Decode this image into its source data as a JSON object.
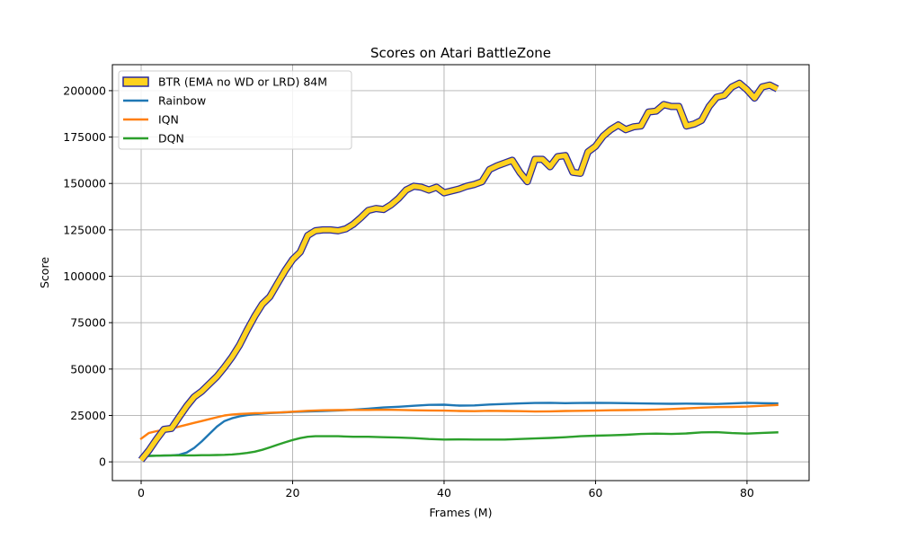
{
  "chart_data": {
    "type": "line",
    "title": "Scores on Atari BattleZone",
    "xlabel": "Frames (M)",
    "ylabel": "Score",
    "xlim": [
      -3.8,
      88.2
    ],
    "ylim": [
      -10100,
      214000
    ],
    "xticks": [
      0,
      20,
      40,
      60,
      80
    ],
    "yticks": [
      0,
      25000,
      50000,
      75000,
      100000,
      125000,
      150000,
      175000,
      200000
    ],
    "grid": true,
    "legend_position": "upper-left",
    "series": [
      {
        "name": "BTR (EMA no WD or LRD) 84M",
        "color": "#ffd21f",
        "edge_color": "#2a2a9c",
        "style": "outlined",
        "x": [
          0,
          1,
          2,
          3,
          4,
          5,
          6,
          7,
          8,
          9,
          10,
          11,
          12,
          13,
          14,
          15,
          16,
          17,
          18,
          19,
          20,
          21,
          22,
          23,
          24,
          25,
          26,
          27,
          28,
          29,
          30,
          31,
          32,
          33,
          34,
          35,
          36,
          37,
          38,
          39,
          40,
          41,
          42,
          43,
          44,
          45,
          46,
          47,
          48,
          49,
          50,
          51,
          52,
          53,
          54,
          55,
          56,
          57,
          58,
          59,
          60,
          61,
          62,
          63,
          64,
          65,
          66,
          67,
          68,
          69,
          70,
          71,
          72,
          73,
          74,
          75,
          76,
          77,
          78,
          79,
          80,
          81,
          82,
          83,
          84
        ],
        "y": [
          1000,
          6000,
          12000,
          17500,
          18000,
          24000,
          30000,
          35000,
          38000,
          42000,
          46000,
          51000,
          56500,
          63000,
          71000,
          78500,
          85000,
          89000,
          96000,
          103000,
          109000,
          113000,
          122000,
          124500,
          125000,
          125000,
          124500,
          125500,
          128000,
          131500,
          135500,
          136500,
          136000,
          138500,
          142000,
          146500,
          148500,
          148000,
          146500,
          148000,
          145000,
          146000,
          147000,
          148500,
          149500,
          151000,
          157500,
          159500,
          161000,
          162500,
          156000,
          151000,
          163000,
          163000,
          159000,
          164500,
          165000,
          156000,
          155500,
          167000,
          170000,
          175500,
          179000,
          181500,
          179000,
          180500,
          181000,
          188500,
          189000,
          192500,
          191500,
          191500,
          181000,
          182000,
          184000,
          191500,
          196500,
          197500,
          202000,
          204000,
          200500,
          196000,
          202000,
          203000,
          201000
        ]
      },
      {
        "name": "Rainbow",
        "color": "#1f77b4",
        "x": [
          0,
          1,
          2,
          3,
          4,
          5,
          6,
          7,
          8,
          9,
          10,
          11,
          12,
          13,
          14,
          15,
          16,
          17,
          18,
          19,
          20,
          22,
          24,
          26,
          28,
          30,
          32,
          34,
          36,
          38,
          40,
          42,
          44,
          46,
          48,
          50,
          52,
          54,
          56,
          58,
          60,
          62,
          64,
          66,
          68,
          70,
          72,
          74,
          76,
          78,
          80,
          82,
          84
        ],
        "y": [
          3000,
          3200,
          3300,
          3400,
          3500,
          3800,
          5000,
          7500,
          11000,
          15000,
          19000,
          22000,
          23500,
          24500,
          25200,
          25700,
          26000,
          26300,
          26500,
          26700,
          26900,
          27100,
          27400,
          27700,
          28100,
          28600,
          29300,
          29700,
          30200,
          30700,
          30800,
          30300,
          30400,
          30900,
          31200,
          31500,
          31700,
          31800,
          31600,
          31700,
          31800,
          31700,
          31600,
          31500,
          31400,
          31300,
          31400,
          31300,
          31200,
          31500,
          31800,
          31600,
          31500
        ]
      },
      {
        "name": "IQN",
        "color": "#ff7f0e",
        "x": [
          0,
          1,
          2,
          3,
          4,
          5,
          6,
          7,
          8,
          9,
          10,
          11,
          12,
          13,
          14,
          15,
          16,
          17,
          18,
          19,
          20,
          22,
          24,
          26,
          28,
          30,
          32,
          34,
          36,
          38,
          40,
          42,
          44,
          46,
          48,
          50,
          52,
          54,
          56,
          58,
          60,
          62,
          64,
          66,
          68,
          70,
          72,
          74,
          76,
          78,
          80,
          82,
          84
        ],
        "y": [
          12500,
          15500,
          16500,
          17300,
          18000,
          19000,
          20000,
          21000,
          22000,
          23000,
          24000,
          25000,
          25500,
          25800,
          26000,
          26200,
          26300,
          26500,
          26600,
          26800,
          27000,
          27500,
          27800,
          27900,
          28000,
          28000,
          28100,
          28000,
          27800,
          27700,
          27600,
          27400,
          27300,
          27500,
          27400,
          27300,
          27100,
          27200,
          27400,
          27500,
          27600,
          27800,
          27900,
          28000,
          28200,
          28500,
          28800,
          29200,
          29500,
          29600,
          29800,
          30200,
          30600
        ]
      },
      {
        "name": "DQN",
        "color": "#2ca02c",
        "x": [
          0,
          1,
          2,
          3,
          4,
          5,
          6,
          7,
          8,
          9,
          10,
          11,
          12,
          13,
          14,
          15,
          16,
          17,
          18,
          19,
          20,
          21,
          22,
          23,
          24,
          26,
          28,
          30,
          32,
          34,
          36,
          38,
          40,
          42,
          44,
          46,
          48,
          50,
          52,
          54,
          56,
          58,
          60,
          62,
          64,
          66,
          68,
          70,
          72,
          74,
          76,
          78,
          80,
          82,
          84
        ],
        "y": [
          3000,
          3200,
          3300,
          3400,
          3500,
          3500,
          3500,
          3500,
          3600,
          3600,
          3700,
          3800,
          4000,
          4300,
          4800,
          5500,
          6500,
          7800,
          9200,
          10500,
          11800,
          12800,
          13500,
          13800,
          13800,
          13800,
          13500,
          13500,
          13300,
          13100,
          12800,
          12300,
          12000,
          12100,
          12000,
          12000,
          12000,
          12300,
          12600,
          12900,
          13300,
          13800,
          14100,
          14300,
          14600,
          15000,
          15200,
          15000,
          15300,
          15900,
          16000,
          15500,
          15200,
          15600,
          15900
        ]
      }
    ]
  }
}
